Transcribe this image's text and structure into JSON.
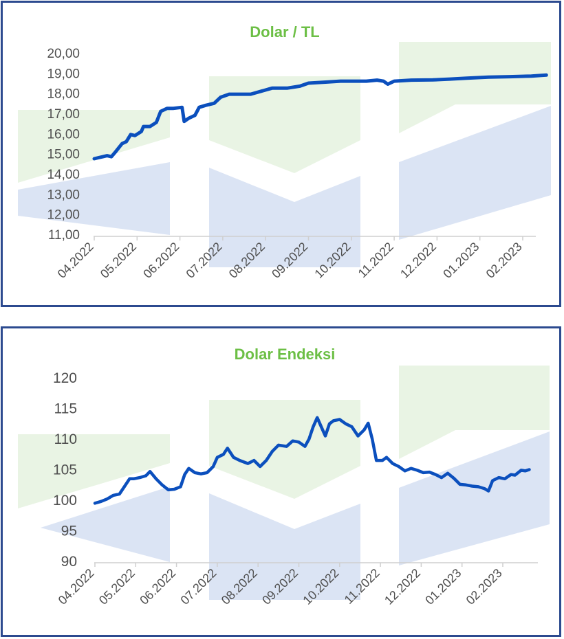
{
  "colors": {
    "border": "#2c4a8f",
    "line": "#0b4fbd",
    "title": "#6cbf45",
    "tick_text": "#4f4f4f",
    "watermark_green": "#e9f4e4",
    "watermark_blue": "#dbe4f4"
  },
  "chart_data": [
    {
      "type": "line",
      "title": "Dolar / TL",
      "xlabel": "",
      "ylabel": "",
      "ylim": [
        11,
        20
      ],
      "y_ticks": [
        "20,00",
        "19,00",
        "18,00",
        "17,00",
        "16,00",
        "15,00",
        "14,00",
        "13,00",
        "12,00",
        "11,00"
      ],
      "x_ticks": [
        "04.2022",
        "05.2022",
        "06.2022",
        "07.2022",
        "08.2022",
        "09.2022",
        "10.2022",
        "11.2022",
        "12.2022",
        "01.2023",
        "02.2023"
      ],
      "grid": false,
      "legend": "none",
      "series": [
        {
          "points": [
            [
              0,
              14.75
            ],
            [
              0.1,
              14.8
            ],
            [
              0.2,
              14.85
            ],
            [
              0.3,
              14.9
            ],
            [
              0.4,
              14.85
            ],
            [
              0.5,
              15.1
            ],
            [
              0.65,
              15.5
            ],
            [
              0.75,
              15.6
            ],
            [
              0.85,
              15.95
            ],
            [
              0.95,
              15.9
            ],
            [
              1.1,
              16.1
            ],
            [
              1.15,
              16.35
            ],
            [
              1.3,
              16.35
            ],
            [
              1.45,
              16.55
            ],
            [
              1.55,
              17.1
            ],
            [
              1.7,
              17.25
            ],
            [
              1.85,
              17.25
            ],
            [
              2.05,
              17.3
            ],
            [
              2.1,
              16.6
            ],
            [
              2.2,
              16.75
            ],
            [
              2.35,
              16.9
            ],
            [
              2.45,
              17.3
            ],
            [
              2.6,
              17.4
            ],
            [
              2.8,
              17.5
            ],
            [
              2.95,
              17.8
            ],
            [
              3.15,
              17.95
            ],
            [
              3.4,
              17.95
            ],
            [
              3.65,
              17.95
            ],
            [
              3.9,
              18.1
            ],
            [
              4.15,
              18.25
            ],
            [
              4.5,
              18.25
            ],
            [
              4.8,
              18.35
            ],
            [
              5.0,
              18.5
            ],
            [
              5.4,
              18.55
            ],
            [
              5.75,
              18.6
            ],
            [
              6.05,
              18.6
            ],
            [
              6.35,
              18.6
            ],
            [
              6.6,
              18.65
            ],
            [
              6.75,
              18.6
            ],
            [
              6.85,
              18.45
            ],
            [
              7.0,
              18.6
            ],
            [
              7.4,
              18.65
            ],
            [
              7.9,
              18.66
            ],
            [
              8.3,
              18.7
            ],
            [
              8.7,
              18.75
            ],
            [
              9.2,
              18.8
            ],
            [
              9.7,
              18.82
            ],
            [
              10.2,
              18.85
            ],
            [
              10.55,
              18.9
            ]
          ]
        }
      ]
    },
    {
      "type": "line",
      "title": "Dolar Endeksi",
      "xlabel": "",
      "ylabel": "",
      "ylim": [
        90,
        120
      ],
      "y_ticks": [
        "120",
        "115",
        "110",
        "105",
        "100",
        "95",
        "90"
      ],
      "x_ticks": [
        "04.2022",
        "05.2022",
        "06.2022",
        "07.2022",
        "08.2022",
        "09.2022",
        "10.2022",
        "11.2022",
        "12.2022",
        "01.2023",
        "02.2023"
      ],
      "grid": false,
      "legend": "none",
      "series": [
        {
          "points": [
            [
              0,
              99.5
            ],
            [
              0.15,
              99.8
            ],
            [
              0.3,
              100.2
            ],
            [
              0.45,
              100.8
            ],
            [
              0.6,
              101.0
            ],
            [
              0.75,
              102.5
            ],
            [
              0.85,
              103.5
            ],
            [
              0.95,
              103.5
            ],
            [
              1.1,
              103.7
            ],
            [
              1.25,
              104.0
            ],
            [
              1.35,
              104.7
            ],
            [
              1.5,
              103.5
            ],
            [
              1.65,
              102.5
            ],
            [
              1.8,
              101.7
            ],
            [
              1.95,
              101.8
            ],
            [
              2.1,
              102.2
            ],
            [
              2.2,
              104.2
            ],
            [
              2.3,
              105.2
            ],
            [
              2.45,
              104.5
            ],
            [
              2.6,
              104.3
            ],
            [
              2.75,
              104.5
            ],
            [
              2.9,
              105.5
            ],
            [
              3.0,
              107.0
            ],
            [
              3.15,
              107.5
            ],
            [
              3.25,
              108.5
            ],
            [
              3.4,
              107.0
            ],
            [
              3.55,
              106.5
            ],
            [
              3.75,
              106.0
            ],
            [
              3.9,
              106.5
            ],
            [
              4.05,
              105.5
            ],
            [
              4.2,
              106.5
            ],
            [
              4.35,
              108.0
            ],
            [
              4.5,
              109.0
            ],
            [
              4.7,
              108.8
            ],
            [
              4.85,
              109.7
            ],
            [
              5.0,
              109.5
            ],
            [
              5.15,
              108.8
            ],
            [
              5.25,
              110.0
            ],
            [
              5.35,
              112.0
            ],
            [
              5.45,
              113.5
            ],
            [
              5.55,
              112.0
            ],
            [
              5.65,
              110.5
            ],
            [
              5.75,
              112.5
            ],
            [
              5.85,
              113.0
            ],
            [
              6.0,
              113.2
            ],
            [
              6.15,
              112.5
            ],
            [
              6.3,
              112.0
            ],
            [
              6.45,
              110.5
            ],
            [
              6.6,
              111.5
            ],
            [
              6.7,
              112.6
            ],
            [
              6.8,
              110.0
            ],
            [
              6.9,
              106.5
            ],
            [
              7.05,
              106.5
            ],
            [
              7.15,
              107.0
            ],
            [
              7.3,
              106.0
            ],
            [
              7.45,
              105.5
            ],
            [
              7.6,
              104.8
            ],
            [
              7.75,
              105.2
            ],
            [
              7.9,
              104.9
            ],
            [
              8.05,
              104.5
            ],
            [
              8.2,
              104.6
            ],
            [
              8.35,
              104.2
            ],
            [
              8.5,
              103.7
            ],
            [
              8.65,
              104.4
            ],
            [
              8.8,
              103.6
            ],
            [
              8.95,
              102.6
            ],
            [
              9.1,
              102.5
            ],
            [
              9.25,
              102.3
            ],
            [
              9.4,
              102.2
            ],
            [
              9.55,
              101.9
            ],
            [
              9.65,
              101.5
            ],
            [
              9.75,
              103.2
            ],
            [
              9.9,
              103.7
            ],
            [
              10.05,
              103.5
            ],
            [
              10.2,
              104.2
            ],
            [
              10.3,
              104.1
            ],
            [
              10.45,
              104.9
            ],
            [
              10.55,
              104.8
            ],
            [
              10.65,
              105.0
            ]
          ]
        }
      ]
    }
  ]
}
